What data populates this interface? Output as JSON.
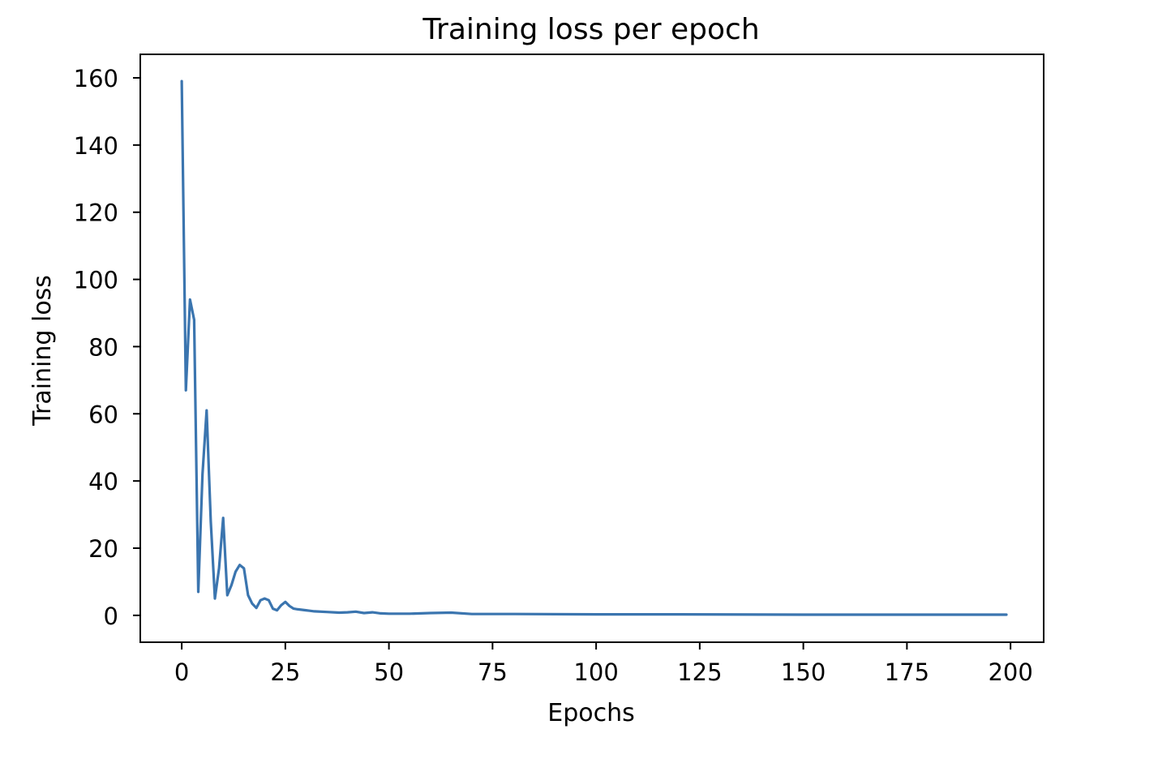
{
  "chart_data": {
    "type": "line",
    "title": "Training loss per epoch",
    "xlabel": "Epochs",
    "ylabel": "Training loss",
    "xlim": [
      -10,
      208
    ],
    "ylim": [
      -8,
      167
    ],
    "xticks": [
      0,
      25,
      50,
      75,
      100,
      125,
      150,
      175,
      200
    ],
    "xtick_labels": [
      "0",
      "25",
      "50",
      "75",
      "100",
      "125",
      "150",
      "175",
      "200"
    ],
    "yticks": [
      0,
      20,
      40,
      60,
      80,
      100,
      120,
      140,
      160
    ],
    "ytick_labels": [
      "0",
      "20",
      "40",
      "60",
      "80",
      "100",
      "120",
      "140",
      "160"
    ],
    "grid": false,
    "line_color": "#3b75af",
    "series": [
      {
        "x": [
          0,
          1,
          2,
          3,
          4,
          5,
          6,
          7,
          8,
          9,
          10,
          11,
          12,
          13,
          14,
          15,
          16,
          17,
          18,
          19,
          20,
          21,
          22,
          23,
          24,
          25,
          26,
          27,
          28,
          30,
          32,
          35,
          38,
          40,
          42,
          44,
          46,
          48,
          50,
          55,
          60,
          65,
          70,
          80,
          100,
          120,
          150,
          175,
          199
        ],
        "y": [
          159,
          67,
          94,
          88,
          7,
          42,
          61,
          28,
          5,
          14,
          29,
          6,
          9,
          13,
          15,
          14,
          6,
          3.5,
          2.2,
          4.5,
          5,
          4.5,
          2,
          1.5,
          3,
          4,
          2.8,
          2,
          1.8,
          1.5,
          1.2,
          1,
          0.8,
          0.9,
          1.1,
          0.7,
          0.9,
          0.6,
          0.5,
          0.5,
          0.7,
          0.8,
          0.4,
          0.4,
          0.3,
          0.3,
          0.2,
          0.2,
          0.2
        ]
      }
    ]
  }
}
